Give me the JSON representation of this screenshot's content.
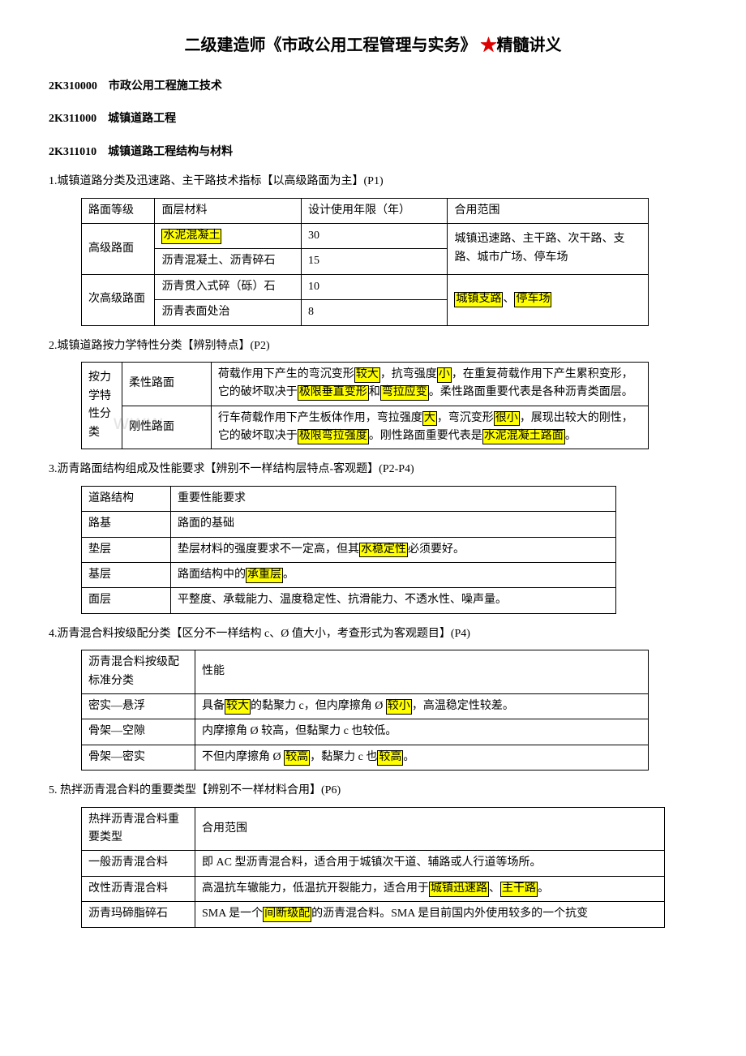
{
  "title_prefix": "二级建造师《市政公用工程管理与实务》",
  "title_star": "★",
  "title_suffix": "精髓讲义",
  "h1": "2K310000　市政公用工程施工技术",
  "h2": "2K311000　城镇道路工程",
  "h3": "2K311010　城镇道路工程结构与材料",
  "item1": "1.城镇道路分类及迅速路、主干路技术指标【以高级路面为主】(P1)",
  "t1": {
    "head": [
      "路面等级",
      "面层材料",
      "设计使用年限（年）",
      "合用范围"
    ],
    "r1": [
      "高级路面",
      "水泥混凝土",
      "30",
      "城镇迅速路、主干路、次干路、支路、城市广场、停车场"
    ],
    "r1b": [
      "沥青混凝土、沥青碎石",
      "15"
    ],
    "r2": [
      "次高级路面",
      "沥青贯入式碎（砾）石",
      "10"
    ],
    "r2b": [
      "沥青表面处治",
      "8"
    ],
    "r2scope_pre": "城镇支路",
    "r2scope_sep": "、",
    "r2scope_post": "停车场"
  },
  "item2": "2.城镇道路按力学特性分类【辨别特点】(P2)",
  "t2": {
    "rowhead": "按力学特性分类",
    "rA_label": "柔性路面",
    "rA_pre": "荷载作用下产生的弯沉变形",
    "rA_h1": "较大",
    "rA_mid1": "，抗弯强度",
    "rA_h2": "小",
    "rA_mid2": "，在重复荷载作用下产生累积变形，它的破坏取决于",
    "rA_h3": "极限垂直变形",
    "rA_mid3": "和",
    "rA_h4": "弯拉应变",
    "rA_tail": "。柔性路面重要代表是各种沥青类面层。",
    "rB_label": "刚性路面",
    "rB_pre": "行车荷载作用下产生板体作用，弯拉强度",
    "rB_h1": "大",
    "rB_mid1": "，弯沉变形",
    "rB_h2": "很小",
    "rB_mid2": "，展现出较大的刚性，它的破坏取决于",
    "rB_h3": "极限弯拉强度",
    "rB_mid3": "。刚性路面重要代表是",
    "rB_h4": "水泥混凝土路面",
    "rB_tail": "。"
  },
  "item3": "3.沥青路面结构组成及性能要求【辨别不一样结构层特点-客观题】(P2-P4)",
  "t3": {
    "head": [
      "道路结构",
      "重要性能要求"
    ],
    "r1": [
      "路基",
      "路面的基础"
    ],
    "r2_label": "垫层",
    "r2_pre": "垫层材料的强度要求不一定高，但其",
    "r2_h": "水稳定性",
    "r2_post": "必须要好。",
    "r3_label": "基层",
    "r3_pre": "路面结构中的",
    "r3_h": "承重层",
    "r3_post": "。",
    "r4": [
      "面层",
      "平整度、承载能力、温度稳定性、抗滑能力、不透水性、噪声量。"
    ]
  },
  "item4": "4.沥青混合料按级配分类【区分不一样结构 c、Ø 值大小，考查形式为客观题目】(P4)",
  "t4": {
    "head": [
      "沥青混合料按级配标准分类",
      "性能"
    ],
    "r1_label": "密实—悬浮",
    "r1_pre": "具备",
    "r1_h1": "较大",
    "r1_mid": "的黏聚力 c，但内摩擦角 Ø ",
    "r1_h2": "较小",
    "r1_post": "，高温稳定性较差。",
    "r2": [
      "骨架—空隙",
      "内摩擦角 Ø 较高，但黏聚力 c 也较低。"
    ],
    "r3_label": "骨架—密实",
    "r3_pre": "不但内摩擦角 Ø ",
    "r3_h1": "较高",
    "r3_mid": "，黏聚力 c 也",
    "r3_h2": "较高",
    "r3_post": "。"
  },
  "item5": "5. 热拌沥青混合料的重要类型【辨别不一样材料合用】(P6)",
  "t5": {
    "head": [
      "热拌沥青混合料重要类型",
      "合用范围"
    ],
    "r1": [
      "一般沥青混合料",
      "即 AC 型沥青混合料，适合用于城镇次干道、辅路或人行道等场所。"
    ],
    "r2_label": "改性沥青混合料",
    "r2_pre": "高温抗车辙能力，低温抗开裂能力，适合用于",
    "r2_h1": "城镇迅速路",
    "r2_sep": "、",
    "r2_h2": "主干路",
    "r2_post": "。",
    "r3_label": "沥青玛碲脂碎石",
    "r3_pre": "SMA 是一个",
    "r3_h": "间断级配",
    "r3_post": "的沥青混合料。SMA 是目前国内外使用较多的一个抗变"
  },
  "watermark": "www"
}
